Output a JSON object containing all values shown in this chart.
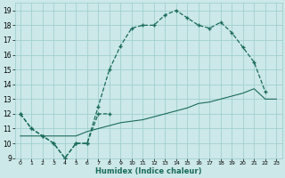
{
  "xlabel": "Humidex (Indice chaleur)",
  "background_color": "#cce8e8",
  "grid_color": "#99cccc",
  "line_color": "#1a6b5a",
  "xlim": [
    -0.5,
    23.5
  ],
  "ylim": [
    9,
    19.5
  ],
  "xticks": [
    0,
    1,
    2,
    3,
    4,
    5,
    6,
    7,
    8,
    9,
    10,
    11,
    12,
    13,
    14,
    15,
    16,
    17,
    18,
    19,
    20,
    21,
    22,
    23
  ],
  "yticks": [
    9,
    10,
    11,
    12,
    13,
    14,
    15,
    16,
    17,
    18,
    19
  ],
  "line_main_x": [
    0,
    1,
    2,
    3,
    4,
    5,
    6,
    7,
    8,
    9,
    10,
    11,
    12,
    13,
    14,
    15,
    16,
    17,
    18,
    19,
    20,
    21,
    22
  ],
  "line_main_y": [
    12,
    11,
    10.5,
    10,
    9,
    10,
    10,
    12.5,
    15,
    16.6,
    17.8,
    18,
    18,
    18.7,
    19,
    18.5,
    18,
    17.8,
    18.2,
    17.5,
    16.5,
    15.5,
    13.5
  ],
  "line_short_x": [
    0,
    1,
    2,
    3,
    4,
    5,
    6,
    7,
    8
  ],
  "line_short_y": [
    12,
    11,
    10.5,
    10,
    9,
    10,
    10,
    12,
    12
  ],
  "line_trend_x": [
    0,
    1,
    2,
    3,
    4,
    5,
    6,
    7,
    8,
    9,
    10,
    11,
    12,
    13,
    14,
    15,
    16,
    17,
    18,
    19,
    20,
    21,
    22,
    23
  ],
  "line_trend_y": [
    10.5,
    10.5,
    10.5,
    10.5,
    10.5,
    10.5,
    10.8,
    11,
    11.2,
    11.4,
    11.5,
    11.6,
    11.8,
    12.0,
    12.2,
    12.4,
    12.7,
    12.8,
    13.0,
    13.2,
    13.4,
    13.7,
    13.0,
    13.0
  ]
}
